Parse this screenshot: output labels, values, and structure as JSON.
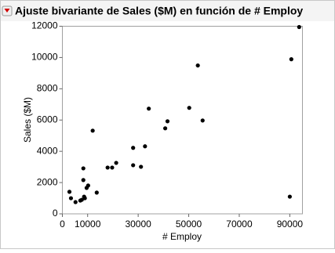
{
  "chart_data": {
    "type": "scatter",
    "title": "Ajuste bivariante de Sales ($M) en función de # Employ",
    "x_label": "# Employ",
    "y_label": "Sales ($M)",
    "x": [
      93700,
      90600,
      53600,
      50200,
      34200,
      55500,
      41600,
      12000,
      40700,
      32700,
      28000,
      21300,
      19700,
      17900,
      28000,
      31100,
      8300,
      8300,
      10200,
      9600,
      2800,
      13600,
      3400,
      5200,
      7700,
      8600,
      8900,
      7100,
      90000
    ],
    "values": [
      11950,
      9890,
      9490,
      6780,
      6730,
      5970,
      5920,
      5320,
      5470,
      4320,
      4220,
      3260,
      2960,
      2960,
      3110,
      3010,
      2910,
      2160,
      1810,
      1660,
      1410,
      1360,
      1000,
      750,
      900,
      1100,
      1000,
      850,
      1100
    ],
    "color": "#000000",
    "xlim": [
      0,
      95000
    ],
    "xticks": [
      0,
      10000,
      30000,
      50000,
      70000,
      90000
    ],
    "ylim": [
      0,
      12000
    ],
    "yticks": [
      0,
      2000,
      4000,
      6000,
      8000,
      10000,
      12000
    ]
  }
}
